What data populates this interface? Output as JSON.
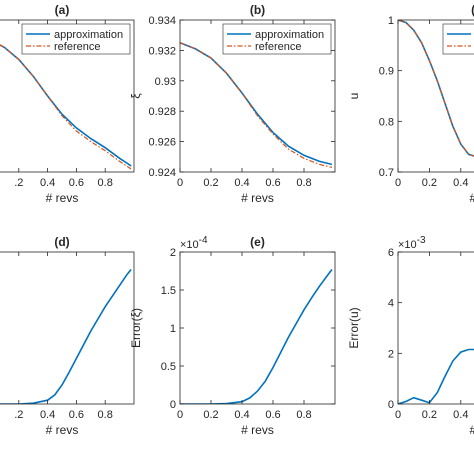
{
  "colors": {
    "approximation": "#0072BD",
    "reference": "#D95319",
    "axis": "#262626"
  },
  "chart_data": [
    {
      "id": "a",
      "type": "line",
      "title": "(a)",
      "xlabel": "# revs",
      "ylabel": "",
      "xlim": [
        0,
        1
      ],
      "ylim": [
        0.924,
        0.934
      ],
      "grid": false,
      "xtick_labels": [
        ".2",
        "0.4",
        "0.6",
        "0.8"
      ],
      "ytick_labels": [],
      "legend": {
        "entries": [
          "approximation",
          "reference"
        ],
        "placement": "top-right"
      },
      "series": [
        {
          "name": "approximation",
          "style": "solid",
          "x": [
            0,
            0.1,
            0.2,
            0.3,
            0.4,
            0.5,
            0.6,
            0.7,
            0.8,
            0.9,
            0.98
          ],
          "y": [
            0.9327,
            0.9322,
            0.9314,
            0.9303,
            0.929,
            0.9278,
            0.9269,
            0.9262,
            0.9256,
            0.9249,
            0.9244
          ]
        },
        {
          "name": "reference",
          "style": "dashdot",
          "x": [
            0,
            0.1,
            0.2,
            0.3,
            0.4,
            0.5,
            0.6,
            0.7,
            0.8,
            0.9,
            0.98
          ],
          "y": [
            0.9327,
            0.9322,
            0.9314,
            0.9303,
            0.929,
            0.9277,
            0.9267,
            0.926,
            0.9254,
            0.9247,
            0.9242
          ]
        }
      ]
    },
    {
      "id": "b",
      "type": "line",
      "title": "(b)",
      "xlabel": "# revs",
      "ylabel": "ξ",
      "xlim": [
        0,
        1
      ],
      "ylim": [
        0.924,
        0.934
      ],
      "grid": false,
      "xtick_labels": [
        "0",
        "0.2",
        "0.4",
        "0.6",
        "0.8"
      ],
      "ytick_labels": [
        "0.924",
        "0.926",
        "0.928",
        "0.93",
        "0.932",
        "0.934"
      ],
      "legend": {
        "entries": [
          "approximation",
          "reference"
        ],
        "placement": "top-right"
      },
      "series": [
        {
          "name": "approximation",
          "style": "solid",
          "x": [
            0,
            0.1,
            0.2,
            0.3,
            0.4,
            0.5,
            0.6,
            0.7,
            0.8,
            0.9,
            0.98
          ],
          "y": [
            0.9325,
            0.9321,
            0.9315,
            0.9305,
            0.9292,
            0.9278,
            0.9266,
            0.9257,
            0.9251,
            0.9247,
            0.9245
          ]
        },
        {
          "name": "reference",
          "style": "dashdot",
          "x": [
            0,
            0.1,
            0.2,
            0.3,
            0.4,
            0.5,
            0.6,
            0.7,
            0.8,
            0.9,
            0.98
          ],
          "y": [
            0.9325,
            0.9321,
            0.9315,
            0.9305,
            0.9292,
            0.9277,
            0.9265,
            0.9255,
            0.9249,
            0.9245,
            0.9243
          ]
        }
      ]
    },
    {
      "id": "c",
      "type": "line",
      "title": "(c",
      "xlabel": "# r",
      "ylabel": "u",
      "xlim": [
        0,
        1
      ],
      "ylim": [
        0.7,
        1.0
      ],
      "grid": false,
      "xtick_labels": [
        "0",
        "0.2",
        "0.4"
      ],
      "ytick_labels": [
        "0.7",
        "0.8",
        "0.9",
        "1"
      ],
      "legend": {
        "entries": [
          "",
          ""
        ],
        "placement": "top-right"
      },
      "series": [
        {
          "name": "approximation",
          "style": "solid",
          "x": [
            0,
            0.05,
            0.1,
            0.15,
            0.2,
            0.25,
            0.3,
            0.35,
            0.4,
            0.45,
            0.5
          ],
          "y": [
            1.0,
            0.995,
            0.98,
            0.955,
            0.92,
            0.88,
            0.835,
            0.79,
            0.755,
            0.735,
            0.73
          ]
        },
        {
          "name": "reference",
          "style": "dashdot",
          "x": [
            0,
            0.05,
            0.1,
            0.15,
            0.2,
            0.25,
            0.3,
            0.35,
            0.4,
            0.45,
            0.5
          ],
          "y": [
            1.0,
            0.995,
            0.98,
            0.955,
            0.92,
            0.88,
            0.835,
            0.79,
            0.755,
            0.735,
            0.73
          ]
        }
      ]
    },
    {
      "id": "d",
      "type": "line",
      "title": "(d)",
      "xlabel": "# revs",
      "ylabel": "",
      "xlim": [
        0,
        1
      ],
      "ylim": [
        0,
        2
      ],
      "grid": false,
      "xtick_labels": ".2",
      "xtick_list": [
        ".2",
        "0.4",
        "0.6",
        "0.8"
      ],
      "ytick_labels": [],
      "series": [
        {
          "name": "error",
          "x": [
            0,
            0.1,
            0.2,
            0.3,
            0.4,
            0.45,
            0.5,
            0.55,
            0.6,
            0.65,
            0.7,
            0.75,
            0.8,
            0.85,
            0.9,
            0.95,
            0.98
          ],
          "y": [
            0,
            0,
            0,
            0.01,
            0.05,
            0.12,
            0.25,
            0.42,
            0.6,
            0.78,
            0.96,
            1.12,
            1.28,
            1.42,
            1.56,
            1.7,
            1.77
          ]
        }
      ]
    },
    {
      "id": "e",
      "type": "line",
      "title": "(e)",
      "xlabel": "# revs",
      "ylabel": "Error(ξ)",
      "xlim": [
        0,
        1
      ],
      "ylim": [
        0,
        2
      ],
      "grid": false,
      "exponent": "×10",
      "exponent_power": "-4",
      "xtick_labels": [
        "0",
        "0.2",
        "0.4",
        "0.6",
        "0.8"
      ],
      "ytick_labels": [
        "0",
        "0.5",
        "1",
        "1.5",
        "2"
      ],
      "series": [
        {
          "name": "error",
          "x": [
            0,
            0.1,
            0.2,
            0.3,
            0.4,
            0.45,
            0.5,
            0.55,
            0.6,
            0.65,
            0.7,
            0.75,
            0.8,
            0.85,
            0.9,
            0.95,
            0.98
          ],
          "y": [
            0,
            0,
            0,
            0.005,
            0.03,
            0.08,
            0.17,
            0.3,
            0.48,
            0.68,
            0.88,
            1.06,
            1.24,
            1.4,
            1.55,
            1.69,
            1.77
          ]
        }
      ]
    },
    {
      "id": "f",
      "type": "line",
      "title": "(",
      "xlabel": "# r",
      "ylabel": "Error(u)",
      "xlim": [
        0,
        1
      ],
      "ylim": [
        0,
        6
      ],
      "grid": false,
      "exponent": "×10",
      "exponent_power": "-3",
      "xtick_labels": [
        "0",
        "0.2",
        "0.4"
      ],
      "ytick_labels": [
        "0",
        "2",
        "4",
        "6"
      ],
      "series": [
        {
          "name": "error",
          "x": [
            0,
            0.05,
            0.1,
            0.15,
            0.2,
            0.25,
            0.3,
            0.35,
            0.4,
            0.45,
            0.5
          ],
          "y": [
            0,
            0.1,
            0.25,
            0.15,
            0.05,
            0.45,
            1.1,
            1.7,
            2.05,
            2.15,
            2.15
          ]
        }
      ]
    }
  ]
}
